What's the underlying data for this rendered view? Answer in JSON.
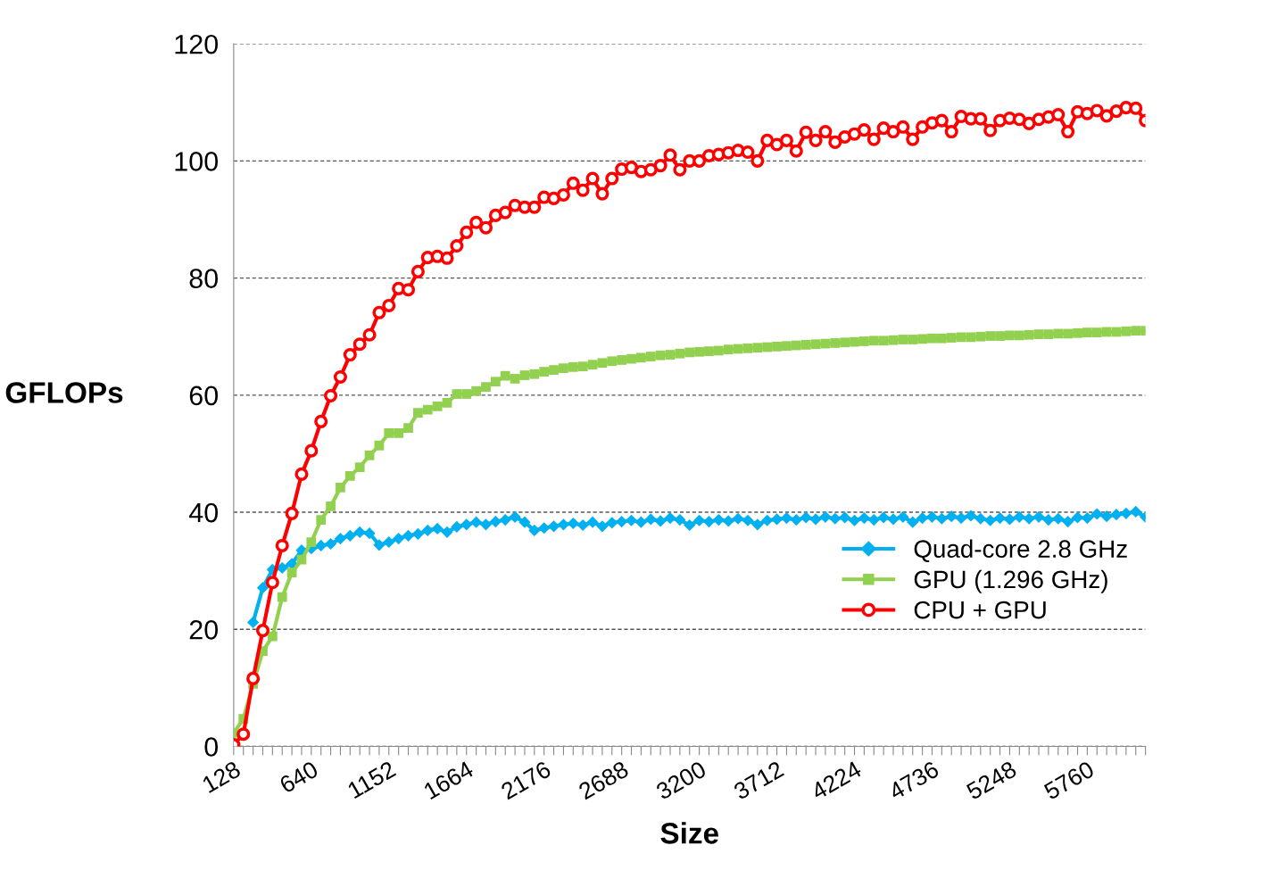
{
  "chart_data": {
    "type": "line",
    "xlabel": "Size",
    "ylabel": "GFLOPs",
    "categories": [
      "128",
      null,
      null,
      null,
      null,
      null,
      null,
      null,
      "640",
      null,
      null,
      null,
      null,
      null,
      null,
      null,
      "1152",
      null,
      null,
      null,
      null,
      null,
      null,
      null,
      "1664",
      null,
      null,
      null,
      null,
      null,
      null,
      null,
      "2176",
      null,
      null,
      null,
      null,
      null,
      null,
      null,
      "2688",
      null,
      null,
      null,
      null,
      null,
      null,
      null,
      "3200",
      null,
      null,
      null,
      null,
      null,
      null,
      null,
      "3712",
      null,
      null,
      null,
      null,
      null,
      null,
      null,
      "4224",
      null,
      null,
      null,
      null,
      null,
      null,
      null,
      "4736",
      null,
      null,
      null,
      null,
      null,
      null,
      null,
      "5248",
      null,
      null,
      null,
      null,
      null,
      null,
      null,
      "5760",
      null,
      null,
      null,
      null,
      null,
      null
    ],
    "ylim": [
      0,
      120
    ],
    "yticks": [
      0,
      20,
      40,
      60,
      80,
      100,
      120
    ],
    "grid": "y",
    "legend": "bottom right",
    "series": [
      {
        "name": "Quad-core 2.8 GHz",
        "color": "#00b0f0",
        "marker": "diamond",
        "values": [
          null,
          null,
          21.2,
          27.1,
          30.2,
          30.5,
          31.2,
          33.5,
          33.8,
          34.3,
          34.6,
          35.5,
          36.0,
          36.6,
          36.4,
          34.4,
          34.9,
          35.5,
          36.0,
          36.3,
          36.9,
          37.2,
          36.6,
          37.5,
          37.9,
          38.3,
          37.9,
          38.4,
          38.7,
          39.2,
          38.3,
          36.9,
          37.3,
          37.6,
          37.9,
          38.1,
          37.8,
          38.3,
          37.6,
          38.2,
          38.4,
          38.6,
          38.3,
          38.8,
          38.5,
          39.0,
          38.7,
          37.8,
          38.6,
          38.4,
          38.7,
          38.5,
          38.9,
          38.6,
          37.9,
          38.6,
          38.8,
          39.0,
          38.7,
          39.1,
          38.8,
          39.2,
          38.9,
          39.1,
          38.6,
          39.0,
          38.7,
          39.1,
          38.8,
          39.2,
          38.3,
          39.0,
          39.2,
          38.9,
          39.3,
          39.0,
          39.4,
          38.9,
          38.6,
          39.0,
          38.8,
          39.2,
          38.9,
          39.2,
          38.7,
          38.9,
          38.4,
          39.1,
          39.0,
          39.7,
          39.3,
          39.6,
          39.8,
          40.1,
          39.2
        ]
      },
      {
        "name": "GPU (1.296 GHz)",
        "color": "#92d050",
        "marker": "square",
        "values": [
          2.3,
          4.7,
          10.7,
          16.3,
          18.8,
          25.5,
          29.7,
          31.9,
          34.9,
          38.7,
          41.0,
          44.2,
          46.2,
          47.7,
          49.7,
          51.4,
          53.5,
          53.5,
          54.4,
          57.0,
          57.5,
          58.1,
          58.7,
          60.2,
          60.2,
          60.7,
          61.4,
          62.3,
          63.3,
          62.8,
          63.4,
          63.6,
          64.0,
          64.3,
          64.6,
          64.8,
          64.9,
          65.2,
          65.5,
          65.8,
          66.0,
          66.2,
          66.4,
          66.6,
          66.8,
          66.9,
          67.1,
          67.3,
          67.4,
          67.5,
          67.6,
          67.8,
          67.9,
          68.0,
          68.1,
          68.2,
          68.3,
          68.4,
          68.5,
          68.6,
          68.7,
          68.8,
          68.9,
          69.0,
          69.1,
          69.2,
          69.3,
          69.3,
          69.4,
          69.5,
          69.5,
          69.6,
          69.7,
          69.7,
          69.8,
          69.9,
          69.9,
          70.0,
          70.1,
          70.1,
          70.2,
          70.2,
          70.3,
          70.4,
          70.4,
          70.5,
          70.5,
          70.6,
          70.7,
          70.7,
          70.8,
          70.8,
          70.9,
          71.0,
          71.0
        ]
      },
      {
        "name": "CPU + GPU",
        "color": "#ff0000",
        "marker": "circle",
        "values": [
          0.3,
          2.1,
          11.6,
          19.8,
          28.0,
          34.3,
          39.8,
          46.5,
          50.5,
          55.5,
          59.9,
          63.1,
          66.9,
          68.7,
          70.3,
          74.1,
          75.3,
          78.2,
          78.0,
          81.1,
          83.5,
          83.7,
          83.4,
          85.5,
          87.8,
          89.5,
          88.6,
          90.7,
          91.2,
          92.4,
          92.1,
          92.1,
          93.8,
          93.6,
          94.2,
          96.2,
          95.0,
          97.0,
          94.4,
          97.0,
          98.6,
          98.9,
          98.2,
          98.5,
          99.2,
          101.0,
          98.5,
          100.0,
          100.0,
          100.9,
          101.1,
          101.4,
          101.8,
          101.5,
          100.0,
          103.5,
          102.8,
          103.5,
          101.7,
          104.9,
          103.5,
          105.0,
          103.2,
          104.1,
          104.6,
          105.3,
          103.7,
          105.6,
          105.0,
          105.8,
          103.7,
          105.8,
          106.5,
          106.9,
          105.0,
          107.6,
          107.2,
          107.2,
          105.2,
          106.9,
          107.3,
          107.1,
          106.4,
          107.1,
          107.5,
          107.9,
          105.0,
          108.4,
          108.1,
          108.6,
          107.7,
          108.5,
          109.1,
          109.0,
          106.9
        ]
      }
    ]
  }
}
